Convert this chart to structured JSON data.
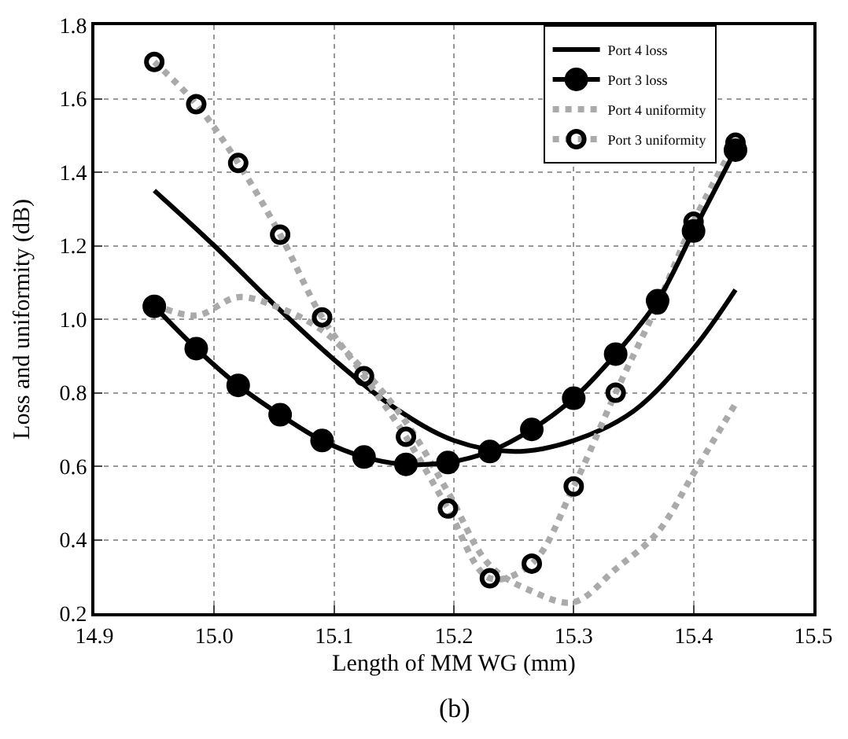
{
  "chart_data": {
    "type": "line",
    "xlabel": "Length of MM WG (mm)",
    "ylabel": "Loss and uniformity (dB)",
    "annotations": [
      "(b)"
    ],
    "x": [
      14.95,
      14.985,
      15.02,
      15.055,
      15.09,
      15.125,
      15.16,
      15.195,
      15.23,
      15.265,
      15.3,
      15.335,
      15.37,
      15.4,
      15.435
    ],
    "series": [
      {
        "name": "Port 4 loss",
        "color": "#000000",
        "marker": "none",
        "line_style": "solid",
        "x": [
          14.95,
          15.0,
          15.05,
          15.1,
          15.15,
          15.2,
          15.25,
          15.3,
          15.35,
          15.4,
          15.435
        ],
        "values": [
          1.35,
          1.2,
          1.04,
          0.89,
          0.76,
          0.67,
          0.64,
          0.67,
          0.75,
          0.92,
          1.08
        ]
      },
      {
        "name": "Port 3 loss",
        "color": "#000000",
        "marker": "circle",
        "line_style": "solid",
        "values": [
          1.035,
          0.92,
          0.82,
          0.74,
          0.67,
          0.625,
          0.605,
          0.61,
          0.64,
          0.7,
          0.785,
          0.905,
          1.05,
          1.24,
          1.46
        ]
      },
      {
        "name": "Port 4 uniformity",
        "color": "#aaaaaa",
        "marker": "none",
        "line_style": "dotted",
        "values": [
          1.04,
          1.01,
          1.06,
          1.03,
          0.97,
          0.86,
          0.72,
          0.53,
          0.33,
          0.26,
          0.23,
          0.32,
          0.42,
          0.58,
          0.77
        ]
      },
      {
        "name": "Port 3 uniformity",
        "color": "#aaaaaa",
        "marker": "circle-open",
        "line_style": "dotted",
        "values": [
          1.7,
          1.585,
          1.425,
          1.23,
          1.005,
          0.845,
          0.68,
          0.485,
          0.295,
          0.335,
          0.545,
          0.8,
          1.04,
          1.265,
          1.48
        ]
      }
    ],
    "xlim": [
      14.9,
      15.5
    ],
    "xticks": [
      14.9,
      {
        "value": 15,
        "label": "15.0"
      },
      15.1,
      15.2,
      15.3,
      15.4,
      15.5
    ],
    "ylim": [
      0.2,
      1.8
    ],
    "yticks": [
      0.2,
      0.4,
      0.6,
      0.8,
      {
        "value": 1,
        "label": "1.0"
      },
      1.2,
      1.4,
      1.6,
      1.8
    ],
    "grid": true,
    "legend": "top right"
  }
}
